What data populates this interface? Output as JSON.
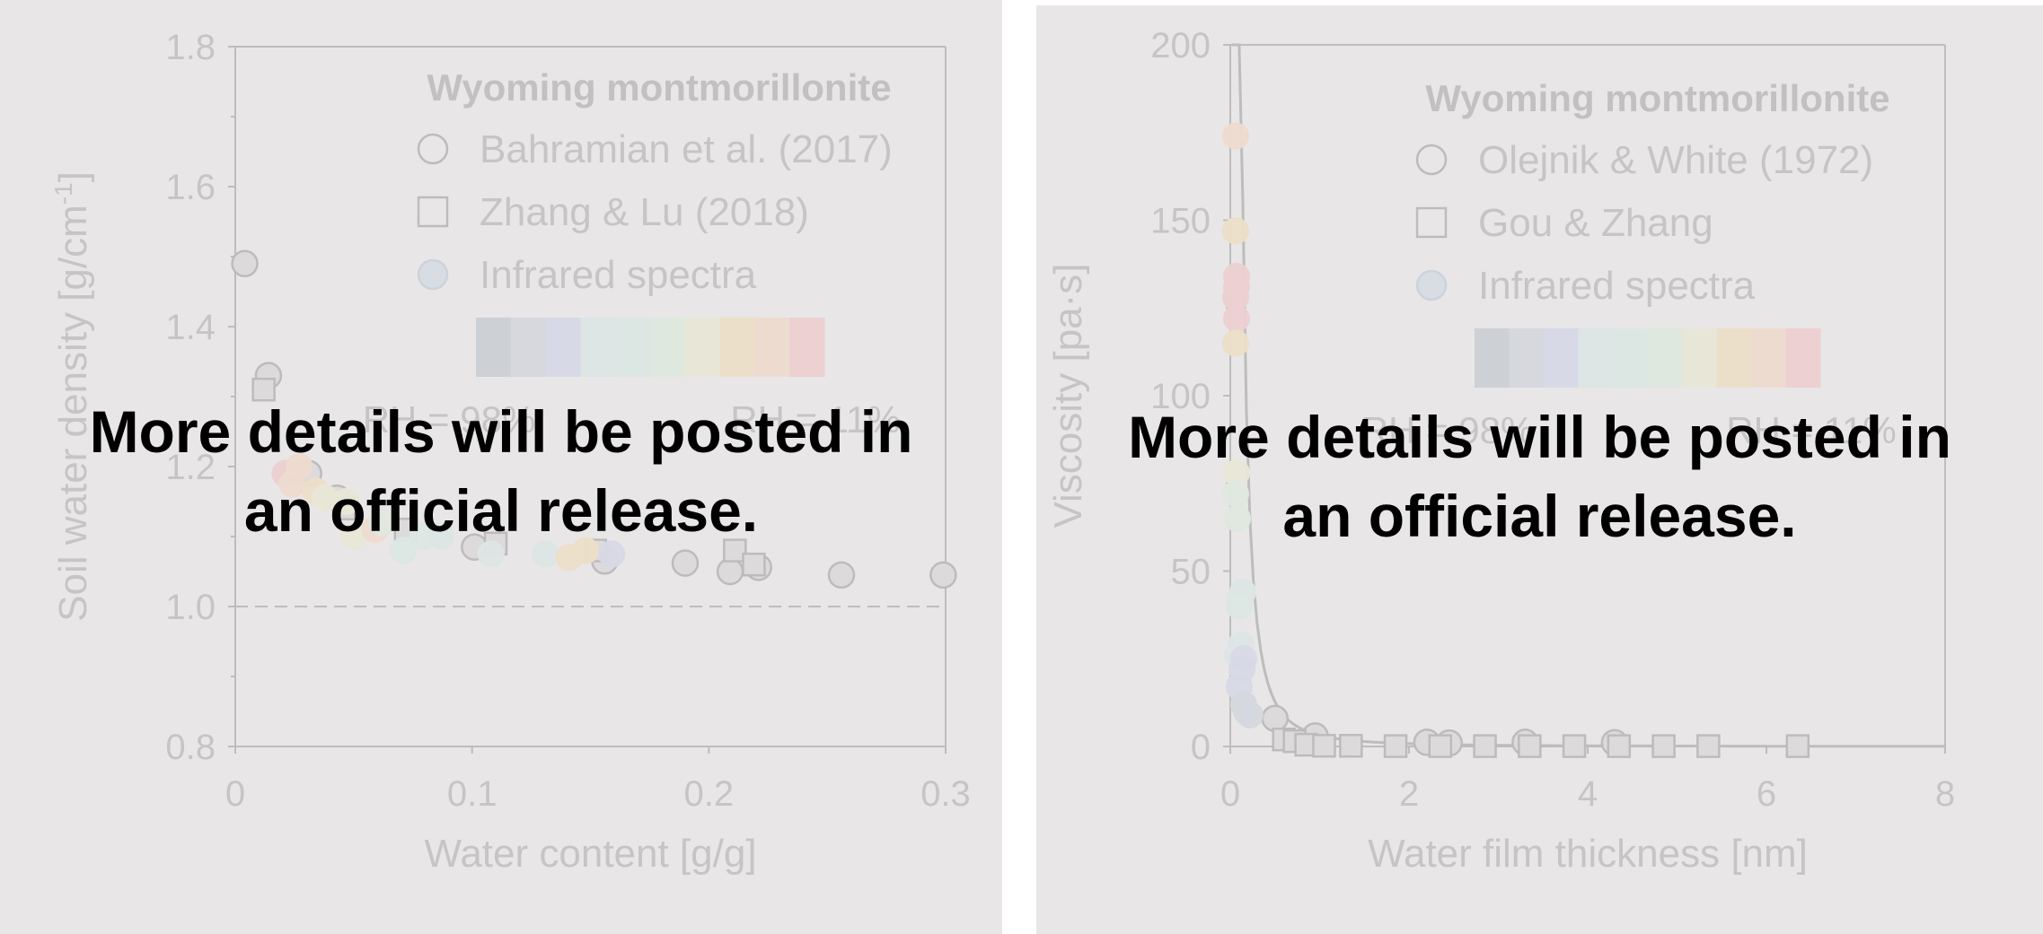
{
  "overlay_text": "More details will be posted in\nan official release.",
  "colors": {
    "background": "#e8e6e7",
    "axis": "#bdbdbd",
    "text_faint": "#c6c4c5",
    "legend_bold": "#c2c0c1",
    "marker_stroke": "#bdbbbc",
    "marker_fill": "#dcdadb",
    "overlay": "#000000",
    "rh_gradient": [
      "#cdd0d4",
      "#d6d8de",
      "#d8d9e6",
      "#dde5e5",
      "#dce7e3",
      "#dfe8df",
      "#e8e7d7",
      "#ecdfc9",
      "#eedbd0",
      "#ecd0d2"
    ]
  },
  "chart_data": [
    {
      "type": "scatter",
      "title": "Wyoming montmorillonite",
      "xlabel": "Water content [g/g]",
      "ylabel": "Soil water density [g/cm-1]",
      "ylabel_parts": [
        "Soil water density [g/cm",
        "-1",
        "]"
      ],
      "xlim": [
        0,
        0.3
      ],
      "ylim": [
        0.8,
        1.8
      ],
      "xticks": [
        0,
        0.1,
        0.2,
        0.3
      ],
      "xtick_labels": [
        "0",
        "0.1",
        "0.2",
        "0.3"
      ],
      "yticks": [
        0.8,
        1.0,
        1.2,
        1.4,
        1.6,
        1.8
      ],
      "ytick_labels": [
        "0.8",
        "1.0",
        "1.2",
        "1.4",
        "1.6",
        "1.8"
      ],
      "reference_line": {
        "y": 1.0,
        "style": "dashed"
      },
      "legend": {
        "position": "top-right",
        "entries": [
          {
            "label": "Bahramian et al. (2017)",
            "marker": "circle"
          },
          {
            "label": "Zhang & Lu (2018)",
            "marker": "square"
          },
          {
            "label": "Infrared spectra",
            "marker": "circle-colored"
          }
        ],
        "colorbar_left": "RH = 98%",
        "colorbar_right": "RH = 11%"
      },
      "series": [
        {
          "name": "Bahramian et al. (2017)",
          "marker": "circle",
          "points": [
            [
              0.004,
              1.49
            ],
            [
              0.014,
              1.33
            ],
            [
              0.031,
              1.19
            ],
            [
              0.043,
              1.155
            ],
            [
              0.101,
              1.085
            ],
            [
              0.156,
              1.065
            ],
            [
              0.19,
              1.062
            ],
            [
              0.209,
              1.05
            ],
            [
              0.221,
              1.056
            ],
            [
              0.256,
              1.045
            ],
            [
              0.299,
              1.045
            ]
          ]
        },
        {
          "name": "Zhang & Lu (2018)",
          "marker": "square",
          "points": [
            [
              0.012,
              1.31
            ],
            [
              0.046,
              1.14
            ],
            [
              0.072,
              1.11
            ],
            [
              0.11,
              1.09
            ],
            [
              0.152,
              1.08
            ],
            [
              0.211,
              1.08
            ],
            [
              0.219,
              1.06
            ]
          ]
        },
        {
          "name": "Infrared spectra",
          "marker": "circle-colored",
          "points": [
            [
              0.021,
              1.19,
              9
            ],
            [
              0.024,
              1.175,
              8
            ],
            [
              0.027,
              1.2,
              8
            ],
            [
              0.034,
              1.165,
              7
            ],
            [
              0.038,
              1.155,
              6
            ],
            [
              0.047,
              1.15,
              6
            ],
            [
              0.05,
              1.1,
              6
            ],
            [
              0.059,
              1.11,
              8
            ],
            [
              0.062,
              1.12,
              5
            ],
            [
              0.071,
              1.08,
              4
            ],
            [
              0.079,
              1.1,
              4
            ],
            [
              0.087,
              1.1,
              3
            ],
            [
              0.108,
              1.075,
              3
            ],
            [
              0.131,
              1.075,
              3
            ],
            [
              0.141,
              1.07,
              7
            ],
            [
              0.148,
              1.08,
              7
            ],
            [
              0.159,
              1.075,
              2
            ]
          ]
        }
      ]
    },
    {
      "type": "scatter",
      "title": "Wyoming montmorillonite",
      "xlabel": "Water film thickness [nm]",
      "ylabel": "Viscosity [pa·s]",
      "xlim": [
        0,
        8
      ],
      "ylim": [
        0,
        200
      ],
      "xticks": [
        0,
        2,
        4,
        6,
        8
      ],
      "xtick_labels": [
        "0",
        "2",
        "4",
        "6",
        "8"
      ],
      "yticks": [
        0,
        50,
        100,
        150,
        200
      ],
      "ytick_labels": [
        "0",
        "50",
        "100",
        "150",
        "200"
      ],
      "legend": {
        "position": "top-right",
        "entries": [
          {
            "label": "Olejnik & White (1972)",
            "marker": "circle"
          },
          {
            "label": "Gou & Zhang",
            "marker": "square"
          },
          {
            "label": "Infrared spectra",
            "marker": "circle-colored"
          }
        ],
        "colorbar_left": "RH = 98%",
        "colorbar_right": "RH = 11%"
      },
      "fit_curve": {
        "style": "line",
        "note": "decaying fit"
      },
      "series": [
        {
          "name": "Olejnik & White (1972)",
          "marker": "circle",
          "points": [
            [
              0.5,
              8
            ],
            [
              0.95,
              3
            ],
            [
              2.2,
              1.2
            ],
            [
              2.45,
              1
            ],
            [
              3.3,
              1.2
            ],
            [
              4.3,
              1.1
            ]
          ]
        },
        {
          "name": "Gou & Zhang",
          "marker": "square",
          "points": [
            [
              0.6,
              2
            ],
            [
              0.72,
              1.5
            ],
            [
              0.85,
              0.5
            ],
            [
              1.05,
              0.2
            ],
            [
              1.35,
              0.2
            ],
            [
              1.85,
              0.1
            ],
            [
              2.35,
              0.1
            ],
            [
              2.85,
              0.1
            ],
            [
              3.35,
              0.1
            ],
            [
              3.85,
              0.1
            ],
            [
              4.35,
              0.1
            ],
            [
              4.85,
              0.1
            ],
            [
              5.35,
              0.1
            ],
            [
              6.35,
              0.1
            ]
          ]
        },
        {
          "name": "Infrared spectra",
          "marker": "circle-colored",
          "points": [
            [
              0.06,
              174,
              8
            ],
            [
              0.06,
              147,
              7
            ],
            [
              0.07,
              134,
              9
            ],
            [
              0.07,
              131,
              9
            ],
            [
              0.06,
              128,
              9
            ],
            [
              0.07,
              122,
              9
            ],
            [
              0.06,
              115,
              7
            ],
            [
              0.07,
              78,
              6
            ],
            [
              0.06,
              72,
              5
            ],
            [
              0.08,
              65,
              5
            ],
            [
              0.1,
              42,
              4
            ],
            [
              0.14,
              44,
              3
            ],
            [
              0.1,
              40,
              4
            ],
            [
              0.12,
              29,
              3
            ],
            [
              0.08,
              26,
              3
            ],
            [
              0.15,
              25,
              2
            ],
            [
              0.13,
              22,
              2
            ],
            [
              0.1,
              17,
              2
            ],
            [
              0.15,
              12,
              1
            ],
            [
              0.18,
              10,
              1
            ],
            [
              0.22,
              9,
              1
            ]
          ]
        }
      ]
    }
  ]
}
